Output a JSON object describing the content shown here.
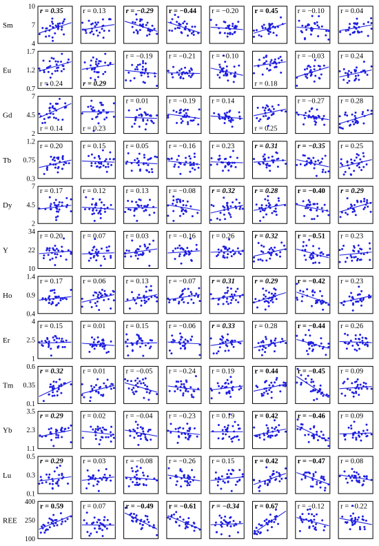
{
  "chart_data": {
    "type": "scatter",
    "title": "",
    "n_cols": 8,
    "point_color": "#1f1fe0",
    "line_color": "#1f1fe0",
    "r_prefix": "r = ",
    "rows": [
      {
        "name": "Sm",
        "ylim": [
          4,
          10
        ],
        "yticks": [
          "10",
          "7",
          "4"
        ],
        "tickvals": [
          10,
          7,
          4
        ],
        "r": [
          "0.35",
          "0.13",
          "−0.29",
          "−0.44",
          "−0.20",
          "0.45",
          "−0.10",
          "0.04"
        ],
        "style": [
          "bi",
          "n",
          "bi",
          "b",
          "n",
          "b",
          "n",
          "n"
        ],
        "rpos": [
          "top",
          "top",
          "top",
          "top",
          "top",
          "top",
          "top",
          "top"
        ]
      },
      {
        "name": "Eu",
        "ylim": [
          0.7,
          1.7
        ],
        "yticks": [
          "1.7",
          "1.2",
          "0.7"
        ],
        "tickvals": [
          1.7,
          1.2,
          0.7
        ],
        "r": [
          "0.24",
          "0.29",
          "−0.19",
          "−0.21",
          "−0.10",
          "0.18",
          "−0.03",
          "0.24"
        ],
        "style": [
          "n",
          "bi",
          "n",
          "n",
          "n",
          "n",
          "n",
          "n"
        ],
        "rpos": [
          "bottom",
          "bottom",
          "top",
          "top",
          "top",
          "bottom",
          "top",
          "top"
        ]
      },
      {
        "name": "Gd",
        "ylim": [
          2,
          7
        ],
        "yticks": [
          "7",
          "4.5",
          "2"
        ],
        "tickvals": [
          7,
          4.5,
          2
        ],
        "r": [
          "0.14",
          "0.23",
          "0.01",
          "−0.19",
          "0.14",
          "0.25",
          "−0.27",
          "0.28"
        ],
        "style": [
          "n",
          "n",
          "n",
          "n",
          "n",
          "n",
          "n",
          "n"
        ],
        "rpos": [
          "bottom",
          "bottom",
          "top",
          "top",
          "top",
          "bottom",
          "top",
          "top"
        ]
      },
      {
        "name": "Tb",
        "ylim": [
          0.3,
          1.2
        ],
        "yticks": [
          "1.2",
          "0.75",
          "0.3"
        ],
        "tickvals": [
          1.2,
          0.75,
          0.3
        ],
        "r": [
          "0.20",
          "0.15",
          "0.05",
          "−0.16",
          "0.23",
          "0.31",
          "−0.35",
          "0.25"
        ],
        "style": [
          "n",
          "n",
          "n",
          "n",
          "n",
          "bi",
          "bi",
          "n"
        ],
        "rpos": [
          "top",
          "top",
          "top",
          "top",
          "top",
          "top",
          "top",
          "top"
        ]
      },
      {
        "name": "Dy",
        "ylim": [
          2,
          7
        ],
        "yticks": [
          "7",
          "4.5",
          "2"
        ],
        "tickvals": [
          7,
          4.5,
          2
        ],
        "r": [
          "0.17",
          "0.12",
          "0.13",
          "−0.08",
          "0.32",
          "0.28",
          "−0.40",
          "0.29"
        ],
        "style": [
          "n",
          "n",
          "n",
          "n",
          "bi",
          "bi",
          "b",
          "bi"
        ],
        "rpos": [
          "top",
          "top",
          "top",
          "top",
          "top",
          "top",
          "top",
          "top"
        ]
      },
      {
        "name": "Y",
        "ylim": [
          10,
          34
        ],
        "yticks": [
          "34",
          "22",
          "10"
        ],
        "tickvals": [
          34,
          22,
          10
        ],
        "r": [
          "0.20",
          "0.07",
          "0.03",
          "−0.16",
          "0.26",
          "0.32",
          "−0.51",
          "0.23"
        ],
        "style": [
          "n",
          "n",
          "n",
          "n",
          "n",
          "bi",
          "b",
          "n"
        ],
        "rpos": [
          "top",
          "top",
          "top",
          "top",
          "top",
          "top",
          "top",
          "top"
        ]
      },
      {
        "name": "Ho",
        "ylim": [
          0.4,
          1.4
        ],
        "yticks": [
          "1.4",
          "0.9",
          "0.4"
        ],
        "tickvals": [
          1.4,
          0.9,
          0.4
        ],
        "r": [
          "0.17",
          "0.06",
          "0.13",
          "−0.07",
          "0.31",
          "0.29",
          "−0.42",
          "0.23"
        ],
        "style": [
          "n",
          "n",
          "n",
          "n",
          "bi",
          "bi",
          "b",
          "n"
        ],
        "rpos": [
          "top",
          "top",
          "top",
          "top",
          "top",
          "top",
          "top",
          "top"
        ]
      },
      {
        "name": "Er",
        "ylim": [
          1,
          4
        ],
        "yticks": [
          "4",
          "2.5",
          "1"
        ],
        "tickvals": [
          4,
          2.5,
          1
        ],
        "r": [
          "0.15",
          "0.01",
          "0.15",
          "−0.06",
          "0.33",
          "0.28",
          "−0.44",
          "0.26"
        ],
        "style": [
          "n",
          "n",
          "n",
          "n",
          "bi",
          "n",
          "b",
          "n"
        ],
        "rpos": [
          "top",
          "top",
          "top",
          "top",
          "top",
          "top",
          "top",
          "top"
        ]
      },
      {
        "name": "Tm",
        "ylim": [
          0.1,
          0.6
        ],
        "yticks": [
          "0.6",
          "0.35",
          "0.1"
        ],
        "tickvals": [
          0.6,
          0.35,
          0.1
        ],
        "r": [
          "0.32",
          "0.01",
          "−0.05",
          "−0.24",
          "0.19",
          "0.44",
          "−0.45",
          "0.09"
        ],
        "style": [
          "bi",
          "n",
          "n",
          "n",
          "n",
          "b",
          "b",
          "n"
        ],
        "rpos": [
          "top",
          "top",
          "top",
          "top",
          "top",
          "top",
          "top",
          "top"
        ]
      },
      {
        "name": "Yb",
        "ylim": [
          1.1,
          3.5
        ],
        "yticks": [
          "3.5",
          "2.3",
          "1.1"
        ],
        "tickvals": [
          3.5,
          2.3,
          1.1
        ],
        "r": [
          "0.29",
          "0.02",
          "−0.04",
          "−0.23",
          "0.19",
          "0.42",
          "−0.46",
          "0.09"
        ],
        "style": [
          "bi",
          "n",
          "n",
          "n",
          "n",
          "b",
          "b",
          "n"
        ],
        "rpos": [
          "top",
          "top",
          "top",
          "top",
          "top",
          "top",
          "top",
          "top"
        ]
      },
      {
        "name": "Lu",
        "ylim": [
          0.1,
          0.5
        ],
        "yticks": [
          "0.5",
          "0.3",
          "0.1"
        ],
        "tickvals": [
          0.5,
          0.3,
          0.1
        ],
        "r": [
          "0.29",
          "0.03",
          "−0.08",
          "−0.26",
          "0.15",
          "0.42",
          "−0.47",
          "0.08"
        ],
        "style": [
          "bi",
          "n",
          "n",
          "n",
          "n",
          "b",
          "b",
          "n"
        ],
        "rpos": [
          "top",
          "top",
          "top",
          "top",
          "top",
          "top",
          "top",
          "top"
        ]
      },
      {
        "name": "REE",
        "ylim": [
          100,
          400
        ],
        "yticks": [
          "400",
          "250",
          "100"
        ],
        "tickvals": [
          400,
          250,
          100
        ],
        "r": [
          "0.59",
          "0.07",
          "−0.49",
          "−0.61",
          "−0.34",
          "0.67",
          "−0.12",
          "−0.22"
        ],
        "style": [
          "b",
          "n",
          "b",
          "b",
          "bi",
          "b",
          "n",
          "n"
        ],
        "rpos": [
          "top",
          "top",
          "top",
          "top",
          "top",
          "top",
          "top",
          "top"
        ]
      }
    ]
  }
}
